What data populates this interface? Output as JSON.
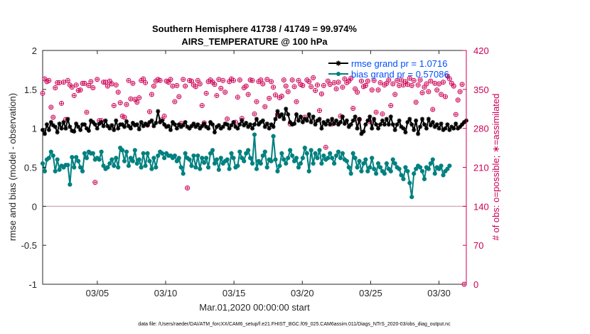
{
  "chart_data": {
    "type": "line",
    "title_line1": "Southern Hemisphere 41738 / 41749 = 99.974%",
    "title_line2": "AIRS_TEMPERATURE @ 100 hPa",
    "xlabel": "Mar.01,2020 00:00:00 start",
    "ylabel_left": "rmse and bias (model - observation)",
    "ylabel_right": "# of obs: o=possible; ∗=assimilated",
    "footnote": "data file: /Users/raeder/DAI/ATM_forcXX/CAM6_setup/f.e21.FHIST_BGC.f09_025.CAM6assim.011/Diags_NTrS_2020-03/obs_diag_output.nc",
    "x_ticks": [
      {
        "day": 5,
        "label": "03/05"
      },
      {
        "day": 10,
        "label": "03/10"
      },
      {
        "day": 15,
        "label": "03/15"
      },
      {
        "day": 20,
        "label": "03/20"
      },
      {
        "day": 25,
        "label": "03/25"
      },
      {
        "day": 30,
        "label": "03/30"
      }
    ],
    "x_range_days": [
      1,
      32
    ],
    "ylim_left": [
      -1,
      2
    ],
    "y_ticks_left": [
      "-1",
      "-0.5",
      "0",
      "0.5",
      "1",
      "1.5",
      "2"
    ],
    "ylim_right": [
      0,
      420
    ],
    "y_ticks_right": [
      "0",
      "70",
      "140",
      "210",
      "280",
      "350",
      "420"
    ],
    "legend_position": "top-right",
    "colors": {
      "rmse": "#000000",
      "bias": "#008080",
      "obs": "#cc0055",
      "zero_line": "#c8a0a8",
      "legend_text": "#0050ff"
    },
    "series": [
      {
        "name": "rmse grand pr = 1.0716",
        "axis": "left",
        "values": [
          0.98,
          0.93,
          1.05,
          0.98,
          1.08,
          1.04,
          1.02,
          0.95,
          1.06,
          1.0,
          1.08,
          1.0,
          1.12,
          1.02,
          0.97,
          0.96,
          1.06,
          1.02,
          0.98,
          1.05,
          1.05,
          1.0,
          0.97,
          1.1,
          1.08,
          1.05,
          1.0,
          1.06,
          1.08,
          1.03,
          1.1,
          1.03,
          1.0,
          1.04,
          0.98,
          1.1,
          1.0,
          1.05,
          1.05,
          1.02,
          1.09,
          1.03,
          1.0,
          1.07,
          1.04,
          1.05,
          0.99,
          1.08,
          1.03,
          1.06,
          1.04,
          1.08,
          1.1,
          1.03,
          1.07,
          1.22,
          1.08,
          1.1,
          1.05,
          1.02,
          1.03,
          0.98,
          1.08,
          1.05,
          1.0,
          1.05,
          1.02,
          1.04,
          1.08,
          1.02,
          1.0,
          1.03,
          1.06,
          1.02,
          1.05,
          1.0,
          1.03,
          1.06,
          1.02,
          1.0,
          1.08,
          1.05,
          0.95,
          1.02,
          1.04,
          1.0,
          1.02,
          1.06,
          1.05,
          1.0,
          1.04,
          1.08,
          1.02,
          1.0,
          1.05,
          1.1,
          1.04,
          1.07,
          1.02,
          1.05,
          1.0,
          1.05,
          1.12,
          1.05,
          1.08,
          1.1,
          1.02,
          1.06,
          1.0,
          1.05,
          1.02,
          1.12,
          1.22,
          1.15,
          1.18,
          1.12,
          1.25,
          1.18,
          1.08,
          1.05,
          1.06,
          1.18,
          1.1,
          1.15,
          1.08,
          1.12,
          1.1,
          1.18,
          1.08,
          1.15,
          1.05,
          1.1,
          1.12,
          1.0,
          1.08,
          1.05,
          1.1,
          1.05,
          1.12,
          1.06,
          1.1,
          1.05,
          1.08,
          1.15,
          1.06,
          1.1,
          1.02,
          1.05,
          1.1,
          1.15,
          1.0,
          1.12,
          0.93,
          0.96,
          1.05,
          1.1,
          1.15,
          1.0,
          1.12,
          1.05,
          1.0,
          1.05,
          1.1,
          1.05,
          1.12,
          1.05,
          1.15,
          1.05,
          0.98,
          1.05,
          1.1,
          1.02,
          1.0,
          0.95,
          1.08,
          1.12,
          1.05,
          0.98,
          1.1,
          0.93,
          1.02,
          1.12,
          1.05,
          1.0,
          1.12,
          1.04,
          1.08,
          1.02,
          1.05,
          1.0,
          1.06,
          0.98,
          1.0,
          1.05,
          0.98,
          1.02,
          1.0,
          1.06,
          1.0,
          1.02,
          1.05,
          1.08,
          1.1
        ]
      },
      {
        "name": "bias grand pr = 0.57086",
        "axis": "left",
        "values": [
          0.55,
          0.45,
          0.6,
          0.62,
          0.7,
          0.65,
          0.45,
          0.6,
          0.47,
          0.52,
          0.5,
          0.53,
          0.53,
          0.28,
          0.63,
          0.5,
          0.63,
          0.58,
          0.5,
          0.45,
          0.68,
          0.62,
          0.7,
          0.68,
          0.68,
          0.6,
          0.62,
          0.6,
          0.7,
          0.52,
          0.48,
          0.5,
          0.55,
          0.6,
          0.52,
          0.62,
          0.5,
          0.75,
          0.72,
          0.58,
          0.7,
          0.52,
          0.62,
          0.58,
          0.72,
          0.55,
          0.6,
          0.5,
          0.68,
          0.52,
          0.68,
          0.58,
          0.48,
          0.62,
          0.5,
          0.65,
          0.7,
          0.68,
          0.62,
          0.68,
          0.65,
          0.65,
          0.62,
          0.65,
          0.58,
          0.62,
          0.5,
          0.42,
          0.68,
          0.62,
          0.6,
          0.52,
          0.65,
          0.5,
          0.65,
          0.48,
          0.62,
          0.56,
          0.62,
          0.5,
          0.68,
          0.72,
          0.55,
          0.6,
          0.47,
          0.62,
          0.55,
          0.58,
          0.6,
          0.48,
          0.68,
          0.62,
          0.5,
          0.52,
          0.7,
          0.62,
          0.58,
          0.68,
          0.72,
          0.62,
          0.55,
          0.92,
          0.48,
          0.58,
          0.55,
          0.65,
          0.7,
          0.5,
          0.6,
          0.58,
          0.9,
          0.6,
          0.45,
          0.52,
          0.68,
          0.6,
          0.55,
          0.62,
          0.72,
          0.65,
          0.58,
          0.62,
          0.5,
          0.55,
          0.62,
          0.75,
          0.68,
          0.45,
          0.72,
          0.55,
          0.68,
          0.62,
          0.72,
          0.55,
          0.65,
          0.6,
          0.62,
          0.68,
          0.62,
          0.55,
          0.65,
          0.7,
          0.62,
          0.68,
          0.6,
          0.58,
          0.5,
          0.42,
          0.68,
          0.62,
          0.5,
          0.58,
          0.45,
          0.55,
          0.6,
          0.45,
          0.5,
          0.62,
          0.48,
          0.42,
          0.55,
          0.5,
          0.45,
          0.42,
          0.55,
          0.48,
          0.45,
          0.6,
          0.55,
          0.5,
          0.48,
          0.4,
          0.35,
          0.5,
          0.45,
          0.3,
          0.12,
          0.42,
          0.48,
          0.52,
          0.5,
          0.45,
          0.35,
          0.5,
          0.48,
          0.55,
          0.6,
          0.42,
          0.5,
          0.48,
          0.52,
          0.4,
          0.45,
          0.48,
          0.52
        ]
      },
      {
        "name": "obs assimilated",
        "axis": "right",
        "values": [
          343,
          369,
          364,
          366,
          318,
          300,
          353,
          362,
          362,
          325,
          363,
          296,
          366,
          358,
          354,
          339,
          358,
          348,
          349,
          361,
          361,
          309,
          357,
          364,
          353,
          183,
          368,
          294,
          294,
          363,
          363,
          356,
          365,
          360,
          321,
          358,
          345,
          326,
          302,
          300,
          323,
          366,
          333,
          361,
          332,
          327,
          335,
          366,
          369,
          362,
          286,
          310,
          341,
          356,
          365,
          368,
          366,
          296,
          302,
          365,
          363,
          368,
          356,
          328,
          357,
          337,
          289,
          368,
          356,
          173,
          366,
          365,
          358,
          355,
          366,
          360,
          321,
          290,
          343,
          364,
          367,
          363,
          359,
          339,
          368,
          352,
          366,
          345,
          297,
          364,
          369,
          366,
          291,
          336,
          367,
          298,
          353,
          356,
          341,
          367,
          366,
          306,
          328,
          364,
          367,
          360,
          319,
          368,
          334,
          364,
          354,
          340,
          305,
          335,
          338,
          367,
          356,
          346,
          288,
          367,
          355,
          328,
          366,
          359,
          357,
          300,
          367,
          364,
          355,
          371,
          348,
          358,
          312,
          342,
          357,
          246,
          365,
          359,
          288,
          362,
          351,
          363,
          302,
          354,
          369,
          362,
          365,
          370,
          316,
          351,
          345,
          296,
          365,
          355,
          357,
          365,
          292,
          349,
          366,
          309,
          349,
          362,
          306,
          358,
          361,
          367,
          321,
          360,
          341,
          366,
          357,
          367,
          358,
          364,
          359,
          370,
          357,
          366,
          327,
          358,
          367,
          344,
          354,
          360,
          346,
          365,
          314,
          361,
          349,
          360,
          341,
          363,
          337,
          374,
          369,
          361,
          356,
          305,
          331,
          346,
          359,
          0
        ]
      }
    ]
  }
}
